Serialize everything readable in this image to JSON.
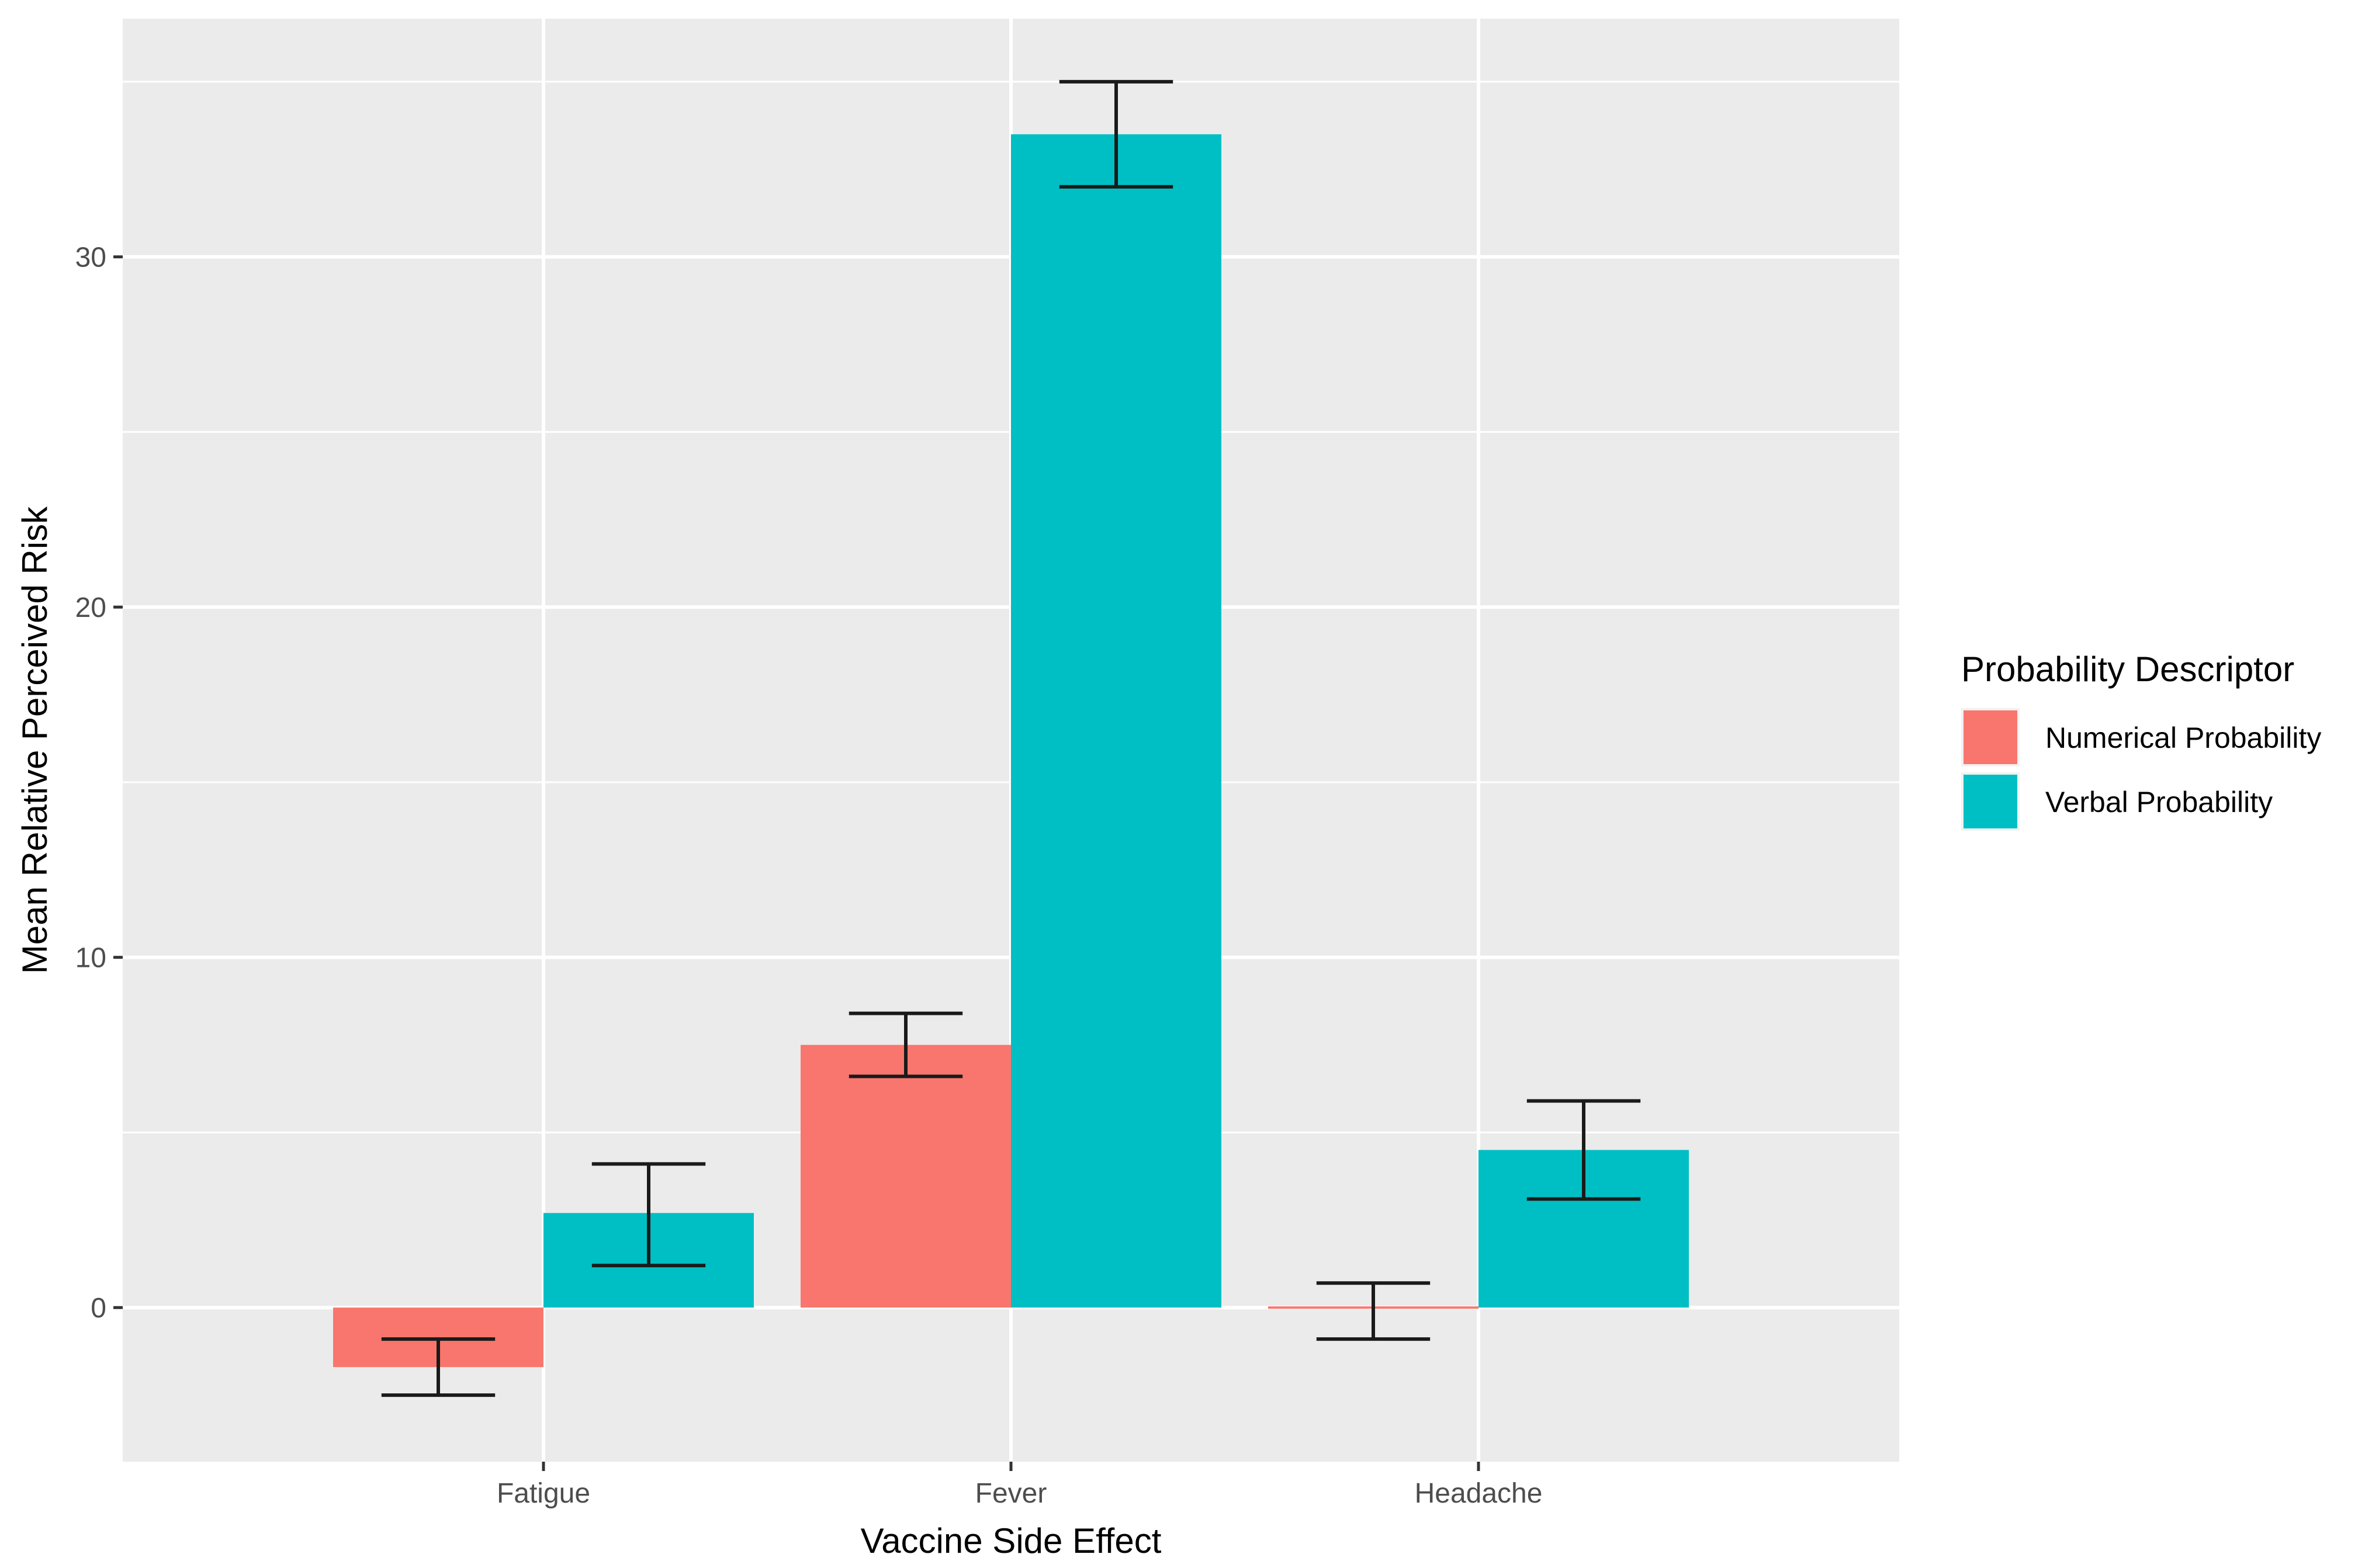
{
  "chart_data": {
    "type": "bar",
    "title": "",
    "xlabel": "Vaccine Side Effect",
    "ylabel": "Mean Relative Perceived Risk",
    "categories": [
      "Fatigue",
      "Fever",
      "Headache"
    ],
    "ylim": [
      -4.4,
      36.8
    ],
    "yticks": [
      0,
      10,
      20,
      30
    ],
    "grid": true,
    "series": [
      {
        "name": "Numerical Probability",
        "color": "#F8766D",
        "values": [
          -1.7,
          7.5,
          -0.05
        ],
        "error_low": [
          -2.5,
          6.6,
          -0.9
        ],
        "error_high": [
          -0.9,
          8.4,
          0.7
        ]
      },
      {
        "name": "Verbal Probability",
        "color": "#00BFC4",
        "values": [
          2.7,
          33.5,
          4.5
        ],
        "error_low": [
          1.2,
          32.0,
          3.1
        ],
        "error_high": [
          4.1,
          35.0,
          5.9
        ]
      }
    ],
    "legend": {
      "title": "Probability Descriptor",
      "position": "right"
    },
    "panel_background": "#EBEBEB",
    "grid_color": "#FFFFFF",
    "errorbar_color": "#1A1A1A"
  }
}
